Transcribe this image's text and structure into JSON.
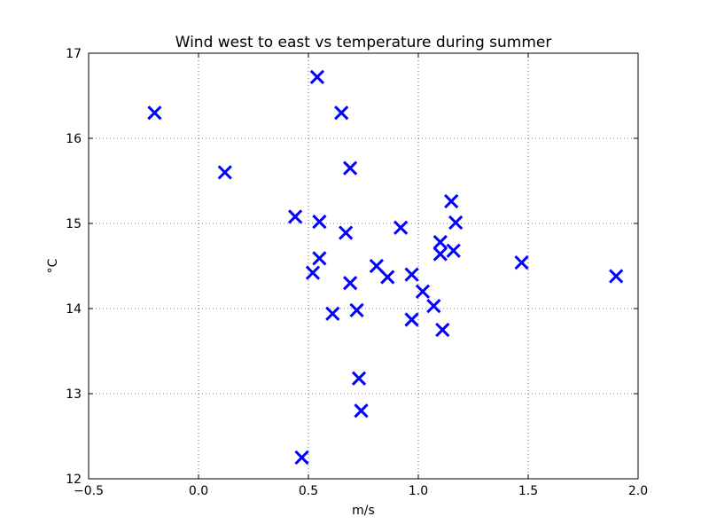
{
  "chart_data": {
    "type": "scatter",
    "title": "Wind west to east vs temperature during summer",
    "xlabel": "m/s",
    "ylabel": "°C",
    "xlim": [
      -0.5,
      2.0
    ],
    "ylim": [
      12,
      17
    ],
    "xticks": [
      -0.5,
      0.0,
      0.5,
      1.0,
      1.5,
      2.0
    ],
    "xtick_labels": [
      "−0.5",
      "0.0",
      "0.5",
      "1.0",
      "1.5",
      "2.0"
    ],
    "yticks": [
      12,
      13,
      14,
      15,
      16,
      17
    ],
    "ytick_labels": [
      "12",
      "13",
      "14",
      "15",
      "16",
      "17"
    ],
    "grid": true,
    "marker": "x",
    "marker_color": "#0000ff",
    "points": [
      {
        "x": -0.2,
        "y": 16.3
      },
      {
        "x": 0.12,
        "y": 15.6
      },
      {
        "x": 0.44,
        "y": 15.08
      },
      {
        "x": 0.47,
        "y": 12.25
      },
      {
        "x": 0.52,
        "y": 14.42
      },
      {
        "x": 0.54,
        "y": 16.72
      },
      {
        "x": 0.55,
        "y": 15.02
      },
      {
        "x": 0.55,
        "y": 14.59
      },
      {
        "x": 0.61,
        "y": 13.94
      },
      {
        "x": 0.65,
        "y": 16.3
      },
      {
        "x": 0.67,
        "y": 14.89
      },
      {
        "x": 0.69,
        "y": 15.65
      },
      {
        "x": 0.69,
        "y": 14.3
      },
      {
        "x": 0.72,
        "y": 13.98
      },
      {
        "x": 0.73,
        "y": 13.18
      },
      {
        "x": 0.74,
        "y": 12.8
      },
      {
        "x": 0.81,
        "y": 14.5
      },
      {
        "x": 0.86,
        "y": 14.37
      },
      {
        "x": 0.92,
        "y": 14.95
      },
      {
        "x": 0.97,
        "y": 14.4
      },
      {
        "x": 0.97,
        "y": 13.87
      },
      {
        "x": 1.02,
        "y": 14.2
      },
      {
        "x": 1.07,
        "y": 14.03
      },
      {
        "x": 1.1,
        "y": 14.78
      },
      {
        "x": 1.1,
        "y": 14.64
      },
      {
        "x": 1.11,
        "y": 13.75
      },
      {
        "x": 1.15,
        "y": 15.26
      },
      {
        "x": 1.16,
        "y": 14.68
      },
      {
        "x": 1.17,
        "y": 15.01
      },
      {
        "x": 1.47,
        "y": 14.54
      },
      {
        "x": 1.9,
        "y": 14.38
      }
    ]
  }
}
